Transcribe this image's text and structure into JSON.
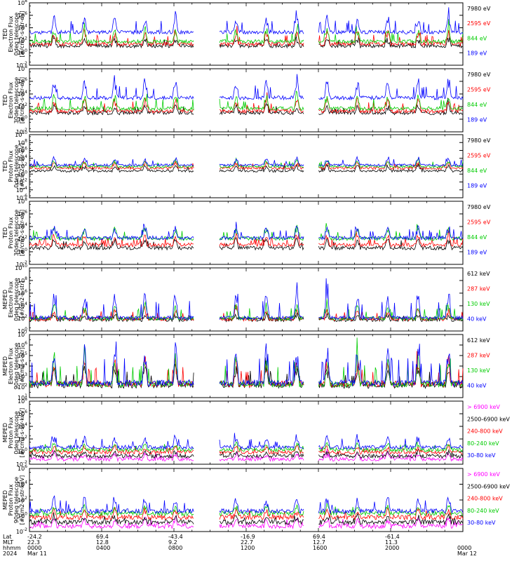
{
  "chart_data": {
    "type": "line",
    "x_time_axis": {
      "rows": [
        {
          "label": "Lat",
          "values": [
            "-24.2",
            "69.4",
            "-43.4",
            "-16.9",
            "69.4",
            "-61.4",
            ""
          ]
        },
        {
          "label": "MLT",
          "values": [
            "22.3",
            "12.8",
            "9.2",
            "22.7",
            "12.7",
            "11.3",
            ""
          ]
        },
        {
          "label": "hhmm",
          "values": [
            "0000",
            "0400",
            "0800",
            "1200",
            "1600",
            "2000",
            "0000"
          ]
        },
        {
          "label": "2024",
          "values": [
            "Mar 11",
            "",
            "",
            "",
            "",
            "",
            "Mar 12"
          ]
        }
      ],
      "range_hours": [
        0,
        24
      ],
      "gap_hours": [
        [
          9.1,
          10.5
        ],
        [
          15.2,
          16.0
        ]
      ]
    },
    "panels": [
      {
        "ylabel": [
          "TED",
          "Electron Flux",
          "0deg telescope",
          "[#/cm2-s-str-eV]"
        ],
        "log_ymin": -2,
        "log_ymax": 8,
        "tick_exps": [
          -2,
          0,
          2,
          4,
          6,
          8
        ],
        "series": [
          {
            "name": "7980 eV",
            "color": "#000000",
            "base": 0.8,
            "amp": 1.2
          },
          {
            "name": "2595 eV",
            "color": "#ff0000",
            "base": 1.1,
            "amp": 2.0
          },
          {
            "name": "844 eV",
            "color": "#00cc00",
            "base": 1.5,
            "amp": 2.2
          },
          {
            "name": "189 eV",
            "color": "#0000ff",
            "base": 3.0,
            "amp": 2.6
          }
        ]
      },
      {
        "ylabel": [
          "TED",
          "Electron Flux",
          "30deg telescope",
          "[#/cm2-s-str-eV]"
        ],
        "log_ymin": -2,
        "log_ymax": 8,
        "tick_exps": [
          -2,
          0,
          2,
          4,
          6,
          8
        ],
        "series": [
          {
            "name": "7980 eV",
            "color": "#000000",
            "base": 0.7,
            "amp": 1.3
          },
          {
            "name": "2595 eV",
            "color": "#ff0000",
            "base": 1.0,
            "amp": 2.0
          },
          {
            "name": "844 eV",
            "color": "#00cc00",
            "base": 1.4,
            "amp": 2.2
          },
          {
            "name": "189 eV",
            "color": "#0000ff",
            "base": 3.1,
            "amp": 2.8
          }
        ]
      },
      {
        "ylabel": [
          "TED",
          "Proton Flux",
          "0deg telescope",
          "[#/cm2-s-str-eV]"
        ],
        "log_ymin": -6,
        "log_ymax": 10,
        "tick_exps": [
          -6,
          -4,
          -2,
          0,
          2,
          4,
          6,
          8,
          10
        ],
        "series": [
          {
            "name": "7980 eV",
            "color": "#000000",
            "base": 0.5,
            "amp": 1.5
          },
          {
            "name": "2595 eV",
            "color": "#ff0000",
            "base": 1.2,
            "amp": 1.6
          },
          {
            "name": "844 eV",
            "color": "#00cc00",
            "base": 1.6,
            "amp": 1.8
          },
          {
            "name": "189 eV",
            "color": "#0000ff",
            "base": 2.0,
            "amp": 2.0
          }
        ]
      },
      {
        "ylabel": [
          "TED",
          "Proton Flux",
          "30deg telescope",
          "[#/cm2-s-str-eV]"
        ],
        "log_ymin": -2,
        "log_ymax": 8,
        "tick_exps": [
          -2,
          0,
          2,
          4,
          6,
          8
        ],
        "series": [
          {
            "name": "7980 eV",
            "color": "#000000",
            "base": 0.3,
            "amp": 1.6
          },
          {
            "name": "2595 eV",
            "color": "#ff0000",
            "base": 0.8,
            "amp": 1.6
          },
          {
            "name": "844 eV",
            "color": "#00cc00",
            "base": 1.8,
            "amp": 1.8
          },
          {
            "name": "189 eV",
            "color": "#0000ff",
            "base": 1.9,
            "amp": 1.8
          }
        ]
      },
      {
        "ylabel": [
          "MEPED",
          "Electron Flux",
          "0deg telescope",
          "[#/cm2-s-str]"
        ],
        "log_ymin": 0,
        "log_ymax": 10,
        "tick_exps": [
          0,
          2,
          4,
          6,
          8,
          10
        ],
        "series": [
          {
            "name": "612 keV",
            "color": "#000000",
            "base": 1.5,
            "amp": 0.8
          },
          {
            "name": "287 keV",
            "color": "#ff0000",
            "base": 1.6,
            "amp": 1.6
          },
          {
            "name": "130 keV",
            "color": "#00cc00",
            "base": 1.7,
            "amp": 2.2
          },
          {
            "name": "40 keV",
            "color": "#0000ff",
            "base": 1.8,
            "amp": 4.0
          }
        ]
      },
      {
        "ylabel": [
          "MEPED",
          "Electron Flux",
          "90deg telescope",
          "[#/cm2-s-str]"
        ],
        "log_ymin": 1,
        "log_ymax": 7,
        "tick_exps": [
          1,
          2,
          3,
          4,
          5,
          6,
          7
        ],
        "series": [
          {
            "name": "612 keV",
            "color": "#000000",
            "base": 1.9,
            "amp": 1.8
          },
          {
            "name": "287 keV",
            "color": "#ff0000",
            "base": 2.0,
            "amp": 2.3
          },
          {
            "name": "130 keV",
            "color": "#00cc00",
            "base": 2.0,
            "amp": 2.6
          },
          {
            "name": "40 keV",
            "color": "#0000ff",
            "base": 2.1,
            "amp": 3.5
          }
        ]
      },
      {
        "ylabel": [
          "MEPED",
          "Proton Flux",
          "0deg telescope",
          "[#/cm2-s-str-keV]"
        ],
        "log_ymin": -2,
        "log_ymax": 8,
        "tick_exps": [
          -2,
          0,
          2,
          4,
          6,
          8
        ],
        "series": [
          {
            "name": "> 6900 keV",
            "color": "#ff00ff",
            "base": -1.5,
            "amp": 1.0
          },
          {
            "name": "2500-6900 keV",
            "color": "#000000",
            "base": -1.0,
            "amp": 0.8
          },
          {
            "name": "240-800 keV",
            "color": "#ff0000",
            "base": -0.4,
            "amp": 1.0
          },
          {
            "name": "80-240 keV",
            "color": "#00cc00",
            "base": 0.0,
            "amp": 1.0
          },
          {
            "name": "30-80 keV",
            "color": "#0000ff",
            "base": 0.4,
            "amp": 1.8
          }
        ]
      },
      {
        "ylabel": [
          "MEPED",
          "Proton Flux",
          "90deg telescope",
          "[#/cm2-s-str-keV]"
        ],
        "log_ymin": -2,
        "log_ymax": 6,
        "tick_exps": [
          -2,
          0,
          2,
          4,
          6
        ],
        "series": [
          {
            "name": "> 6900 keV",
            "color": "#ff00ff",
            "base": -1.6,
            "amp": 1.0
          },
          {
            "name": "2500-6900 keV",
            "color": "#000000",
            "base": -1.1,
            "amp": 0.8
          },
          {
            "name": "240-800 keV",
            "color": "#ff0000",
            "base": -0.5,
            "amp": 1.0
          },
          {
            "name": "80-240 keV",
            "color": "#00cc00",
            "base": 0.0,
            "amp": 1.0
          },
          {
            "name": "30-80 keV",
            "color": "#0000ff",
            "base": 0.3,
            "amp": 1.8
          }
        ]
      }
    ]
  }
}
